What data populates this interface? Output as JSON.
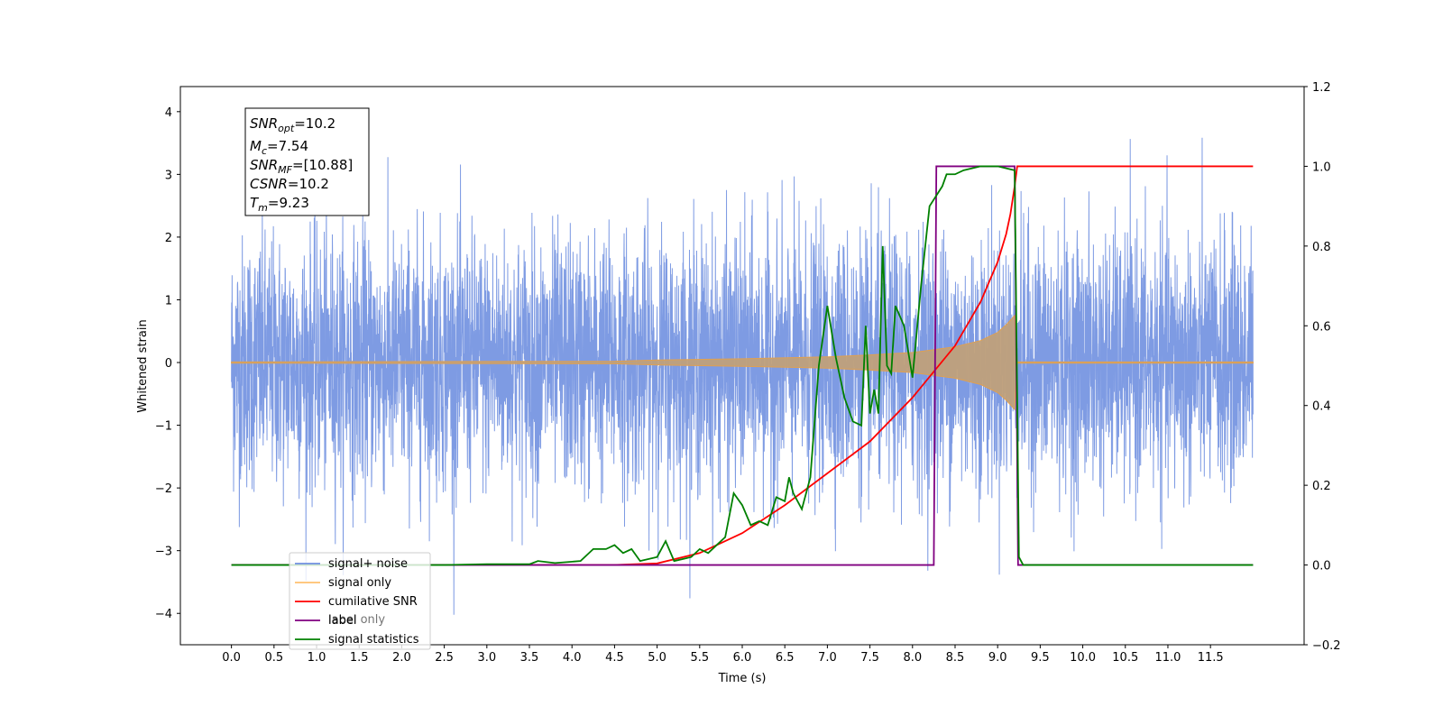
{
  "chart_data": {
    "type": "line",
    "xlabel": "Time (s)",
    "ylabel": "Whitened strain",
    "xlim": [
      -0.6,
      12.6
    ],
    "ylim": [
      -4.5,
      4.4
    ],
    "y2lim": [
      -0.2,
      1.2
    ],
    "x_ticks": [
      "0.0",
      "0.5",
      "1.0",
      "1.5",
      "2.0",
      "2.5",
      "3.0",
      "3.5",
      "4.0",
      "4.5",
      "5.0",
      "5.5",
      "6.0",
      "6.5",
      "7.0",
      "7.5",
      "8.0",
      "8.5",
      "9.0",
      "9.5",
      "10.0",
      "10.5",
      "11.0",
      "11.5"
    ],
    "y_ticks": [
      4,
      3,
      2,
      1,
      0,
      -1,
      -2,
      -3,
      -4
    ],
    "y2_ticks": [
      "1.2",
      "1.0",
      "0.8",
      "0.6",
      "0.4",
      "0.2",
      "0.0",
      "−0.2"
    ],
    "annotation": {
      "snr_opt": {
        "sym": "SNR",
        "sub": "opt",
        "value": "=10.2"
      },
      "mc": {
        "sym": "M",
        "sub": "c",
        "value": "=7.54"
      },
      "snr_mf": {
        "sym": "SNR",
        "sub": "MF",
        "value": "=[10.88]"
      },
      "csnr": {
        "sym": "CSNR",
        "sub": "",
        "value": "=10.2"
      },
      "tm": {
        "sym": "T",
        "sub": "m",
        "value": "=9.23"
      }
    },
    "legend": {
      "placement": "lower-left",
      "entries": [
        {
          "label": "signal+ noise",
          "color": "#7090e0"
        },
        {
          "label": "signal only",
          "color": "#ffc06e"
        },
        {
          "label": "cumilative SNR",
          "color": "#ff0000"
        },
        {
          "label": "label",
          "color": "#800080"
        },
        {
          "label": "signal statistics",
          "color": "#008000"
        }
      ],
      "ghost_text": "label only"
    },
    "series": [
      {
        "name": "signal+ noise",
        "color": "#7090e0",
        "axis": "left",
        "noise_std": 1.0,
        "x_range": [
          0.0,
          12.0
        ]
      },
      {
        "name": "signal only",
        "color": "#e0a050",
        "axis": "left",
        "envelope": {
          "x": [
            4.5,
            5.0,
            6.0,
            7.0,
            7.5,
            8.0,
            8.5,
            8.8,
            9.0,
            9.1,
            9.2
          ],
          "amp": [
            0.02,
            0.04,
            0.06,
            0.09,
            0.12,
            0.16,
            0.25,
            0.35,
            0.48,
            0.6,
            0.75
          ]
        }
      },
      {
        "name": "cumilative SNR",
        "color": "#ff0000",
        "axis": "right",
        "points": [
          [
            0.0,
            0.0
          ],
          [
            4.5,
            0.0
          ],
          [
            5.0,
            0.004
          ],
          [
            5.5,
            0.03
          ],
          [
            6.0,
            0.08
          ],
          [
            6.5,
            0.15
          ],
          [
            7.0,
            0.23
          ],
          [
            7.5,
            0.31
          ],
          [
            8.0,
            0.42
          ],
          [
            8.5,
            0.55
          ],
          [
            8.8,
            0.66
          ],
          [
            9.0,
            0.76
          ],
          [
            9.1,
            0.83
          ],
          [
            9.15,
            0.88
          ],
          [
            9.2,
            0.95
          ],
          [
            9.23,
            1.0
          ],
          [
            12.0,
            1.0
          ]
        ]
      },
      {
        "name": "label",
        "color": "#800080",
        "axis": "right",
        "points": [
          [
            0.0,
            0.0
          ],
          [
            8.25,
            0.0
          ],
          [
            8.28,
            1.0
          ],
          [
            9.2,
            1.0
          ],
          [
            9.24,
            0.0
          ],
          [
            12.0,
            0.0
          ]
        ]
      },
      {
        "name": "signal statistics",
        "color": "#008000",
        "axis": "right",
        "points": [
          [
            0.0,
            0.0
          ],
          [
            2.5,
            0.0
          ],
          [
            3.0,
            0.002
          ],
          [
            3.5,
            0.002
          ],
          [
            3.6,
            0.01
          ],
          [
            3.8,
            0.005
          ],
          [
            4.1,
            0.01
          ],
          [
            4.25,
            0.04
          ],
          [
            4.4,
            0.04
          ],
          [
            4.5,
            0.05
          ],
          [
            4.6,
            0.03
          ],
          [
            4.7,
            0.04
          ],
          [
            4.8,
            0.01
          ],
          [
            5.0,
            0.02
          ],
          [
            5.1,
            0.06
          ],
          [
            5.2,
            0.01
          ],
          [
            5.4,
            0.02
          ],
          [
            5.5,
            0.04
          ],
          [
            5.6,
            0.03
          ],
          [
            5.7,
            0.05
          ],
          [
            5.8,
            0.07
          ],
          [
            5.9,
            0.18
          ],
          [
            6.0,
            0.15
          ],
          [
            6.1,
            0.1
          ],
          [
            6.2,
            0.11
          ],
          [
            6.3,
            0.1
          ],
          [
            6.4,
            0.17
          ],
          [
            6.5,
            0.16
          ],
          [
            6.55,
            0.22
          ],
          [
            6.6,
            0.18
          ],
          [
            6.7,
            0.14
          ],
          [
            6.8,
            0.22
          ],
          [
            6.9,
            0.5
          ],
          [
            7.0,
            0.65
          ],
          [
            7.1,
            0.52
          ],
          [
            7.2,
            0.42
          ],
          [
            7.3,
            0.36
          ],
          [
            7.4,
            0.35
          ],
          [
            7.45,
            0.6
          ],
          [
            7.5,
            0.38
          ],
          [
            7.55,
            0.44
          ],
          [
            7.6,
            0.38
          ],
          [
            7.65,
            0.8
          ],
          [
            7.7,
            0.5
          ],
          [
            7.75,
            0.48
          ],
          [
            7.8,
            0.65
          ],
          [
            7.9,
            0.6
          ],
          [
            8.0,
            0.47
          ],
          [
            8.1,
            0.7
          ],
          [
            8.2,
            0.9
          ],
          [
            8.35,
            0.95
          ],
          [
            8.4,
            0.98
          ],
          [
            8.5,
            0.98
          ],
          [
            8.6,
            0.99
          ],
          [
            8.8,
            1.0
          ],
          [
            9.0,
            1.0
          ],
          [
            9.2,
            0.99
          ],
          [
            9.25,
            0.02
          ],
          [
            9.3,
            0.0
          ],
          [
            12.0,
            0.0
          ]
        ]
      }
    ]
  }
}
